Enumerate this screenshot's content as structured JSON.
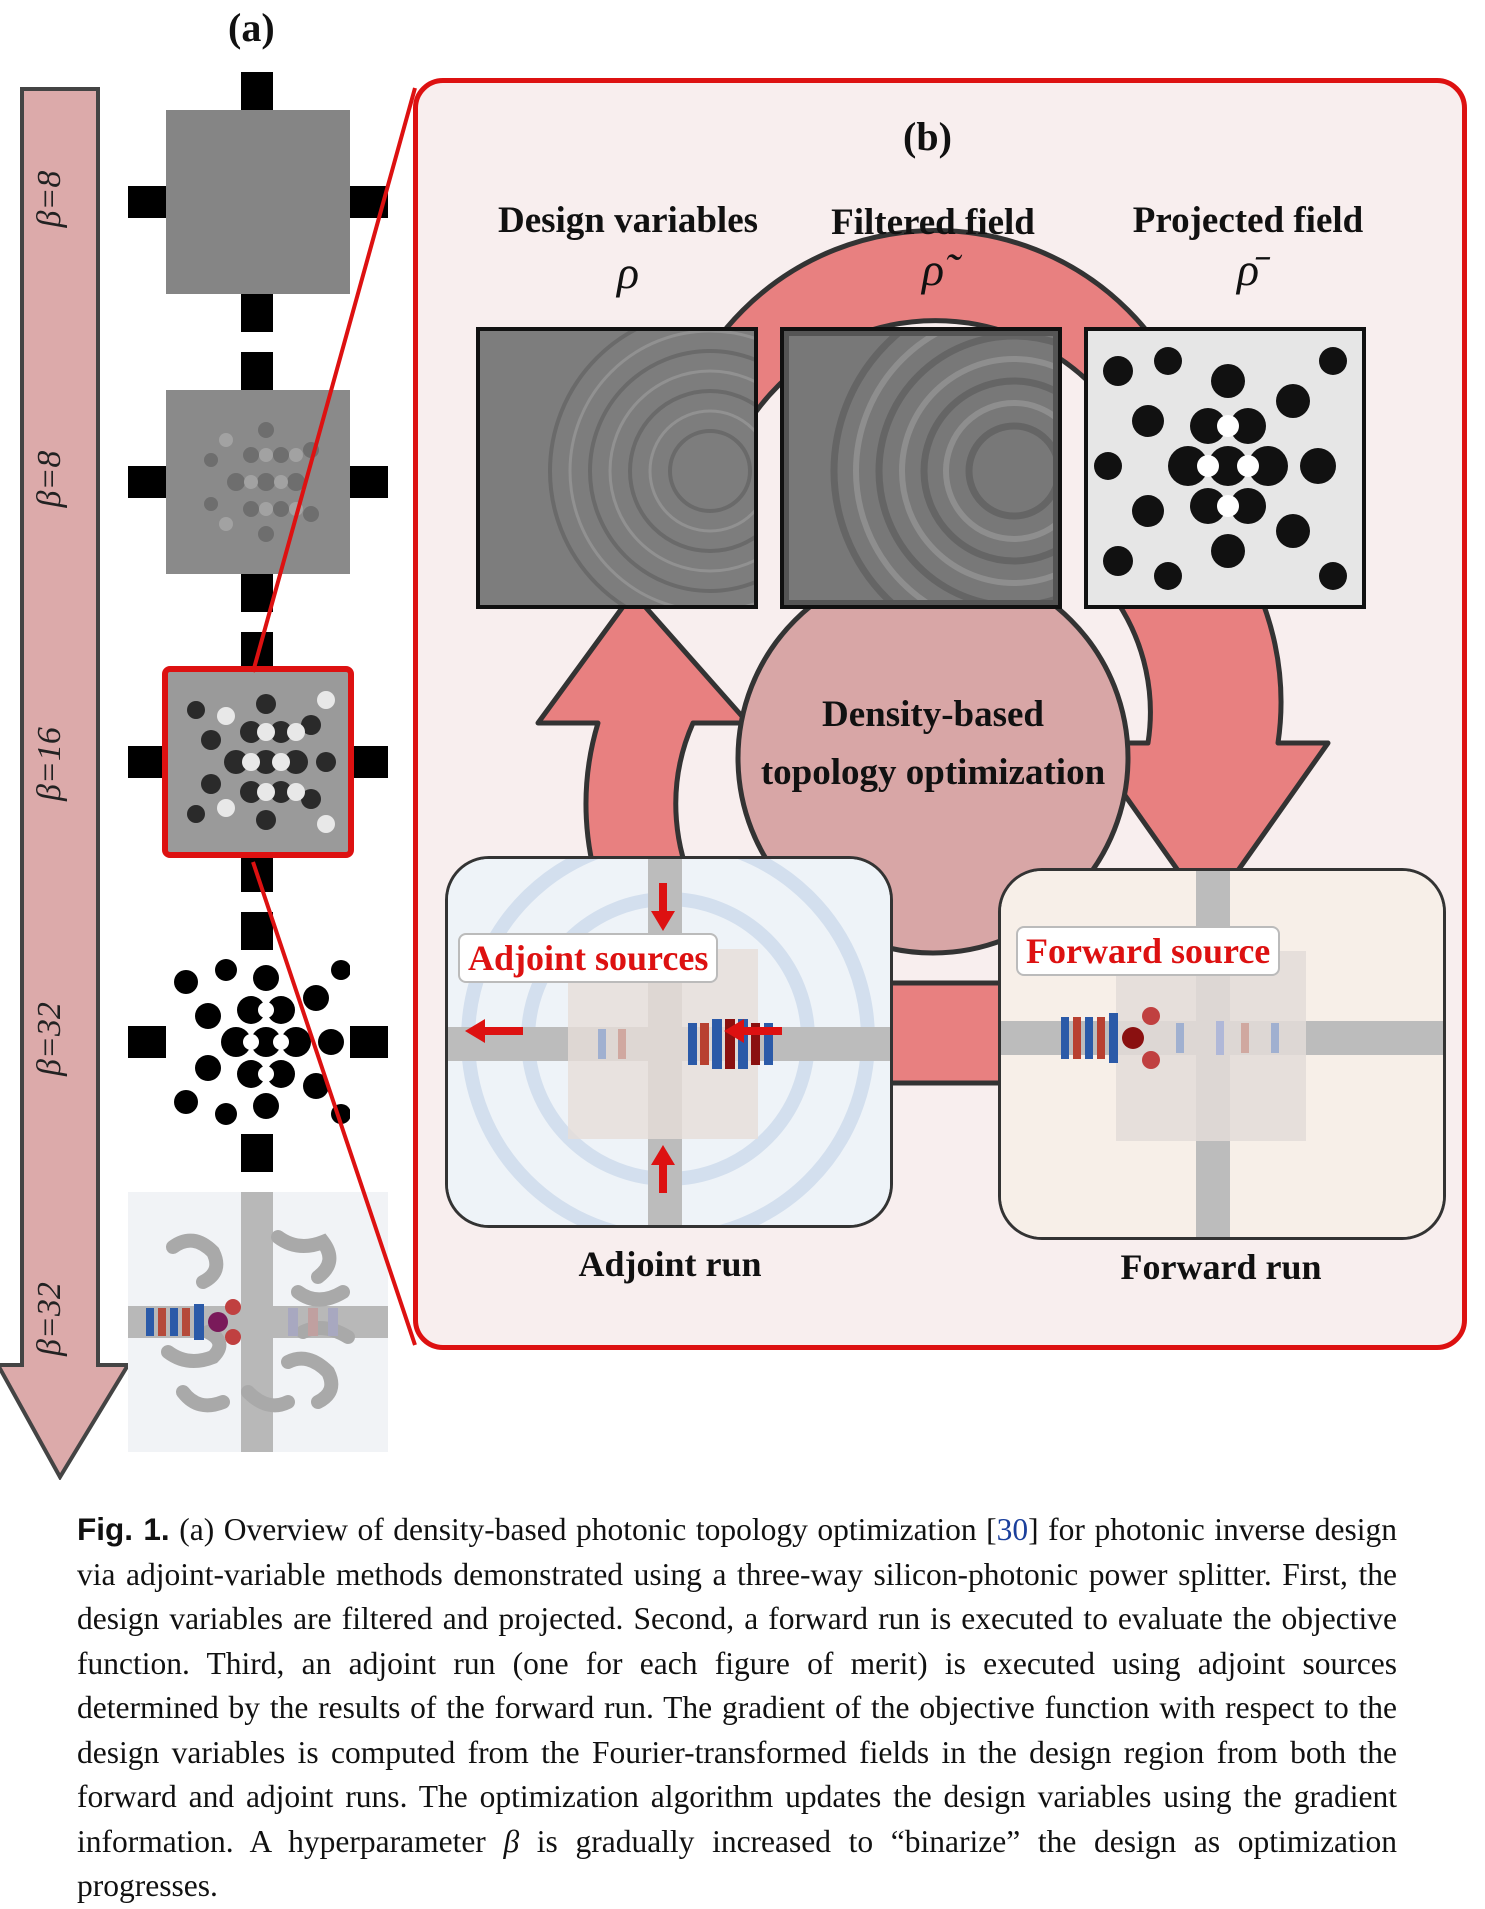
{
  "panel_a": {
    "label": "(a)",
    "stages": [
      {
        "beta": "β=8"
      },
      {
        "beta": "β=8"
      },
      {
        "beta": "β=16"
      },
      {
        "beta": "β=32"
      },
      {
        "beta": "β=32"
      }
    ]
  },
  "panel_b": {
    "label": "(b)",
    "columns": [
      {
        "title": "Design variables",
        "symbol": "ρ"
      },
      {
        "title": "Filtered field",
        "symbol": "ρ̃"
      },
      {
        "title": "Projected field",
        "symbol": "ρ̄"
      }
    ],
    "center_line1": "Density-based",
    "center_line2": "topology optimization",
    "adjoint_tag": "Adjoint sources",
    "forward_tag": "Forward source",
    "adjoint_label": "Adjoint run",
    "forward_label": "Forward run"
  },
  "caption": {
    "fig": "Fig. 1.",
    "part1": " (a) Overview of density-based photonic topology optimization [",
    "ref": "30",
    "part2": "] for photonic inverse design via adjoint-variable methods demonstrated using a three-way silicon-photonic power splitter. First, the design variables are filtered and projected. Second, a forward run is executed to evaluate the objective function. Third, an adjoint run (one for each figure of merit) is executed using adjoint sources determined by the results of the forward run. The gradient of the objective function with respect to the design variables is computed from the Fourier-transformed fields in the design region from both the forward and adjoint runs. The optimization algorithm updates the design variables using the gradient information. A hyperparameter ",
    "beta": "β",
    "part3": " is gradually increased to “binarize” the design as optimization progresses."
  },
  "colors": {
    "accent_red": "#dd1111",
    "arrow_pink": "#e88080",
    "beta_arrow": "#dcaaaa",
    "panel_bg": "#f8eeee"
  }
}
